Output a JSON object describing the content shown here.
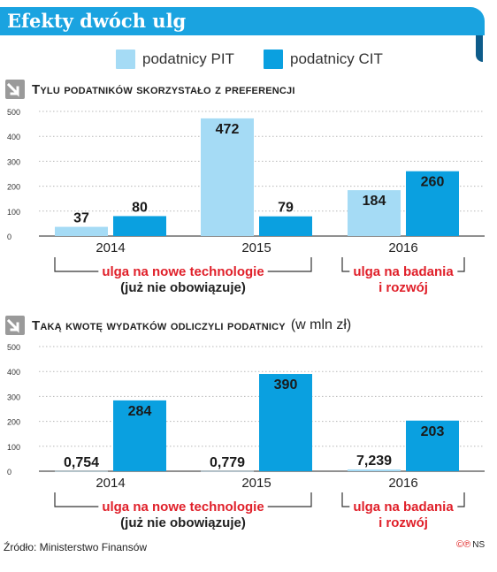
{
  "header": {
    "title": "Efekty dwóch ulg"
  },
  "legend": [
    {
      "label": "podatnicy PIT",
      "color": "#a5dbf5"
    },
    {
      "label": "podatnicy CIT",
      "color": "#0aa0e0"
    }
  ],
  "colors": {
    "accent": "#1aa3e0",
    "pit": "#a5dbf5",
    "cit": "#0aa0e0",
    "red": "#e0202a"
  },
  "icons": {
    "section_marker": "arrow-down-right-icon"
  },
  "groups": {
    "old": {
      "label": "ulga na nowe technologie",
      "sub": "(już nie obowiązuje)"
    },
    "new": {
      "label": "ulga na badania",
      "sub": "i rozwój"
    }
  },
  "chart_data": [
    {
      "type": "bar",
      "title": "Tylu podatników skorzystało z preferencji",
      "unit": "",
      "categories": [
        "2014",
        "2015",
        "2016"
      ],
      "yticks": [
        "0",
        "100",
        "200",
        "300",
        "400",
        "500"
      ],
      "ylim": [
        0,
        500
      ],
      "series": [
        {
          "name": "podatnicy PIT",
          "values": [
            37,
            472,
            184
          ],
          "labels": [
            "37",
            "472",
            "184"
          ]
        },
        {
          "name": "podatnicy CIT",
          "values": [
            80,
            79,
            260
          ],
          "labels": [
            "80",
            "79",
            "260"
          ]
        }
      ],
      "grid": true
    },
    {
      "type": "bar",
      "title": "Taką kwotę wydatków odliczyli podatnicy",
      "unit": "(w mln zł)",
      "categories": [
        "2014",
        "2015",
        "2016"
      ],
      "yticks": [
        "0",
        "100",
        "200",
        "300",
        "400",
        "500"
      ],
      "ylim": [
        0,
        500
      ],
      "series": [
        {
          "name": "podatnicy PIT",
          "values": [
            0.754,
            0.779,
            7.239
          ],
          "labels": [
            "0,754",
            "0,779",
            "7,239"
          ]
        },
        {
          "name": "podatnicy CIT",
          "values": [
            284,
            390,
            203
          ],
          "labels": [
            "284",
            "390",
            "203"
          ]
        }
      ],
      "grid": true
    }
  ],
  "footer": {
    "source": "Źródło: Ministerstwo Finansów",
    "credit_symbols": "©℗",
    "credit_initials": "NS"
  }
}
